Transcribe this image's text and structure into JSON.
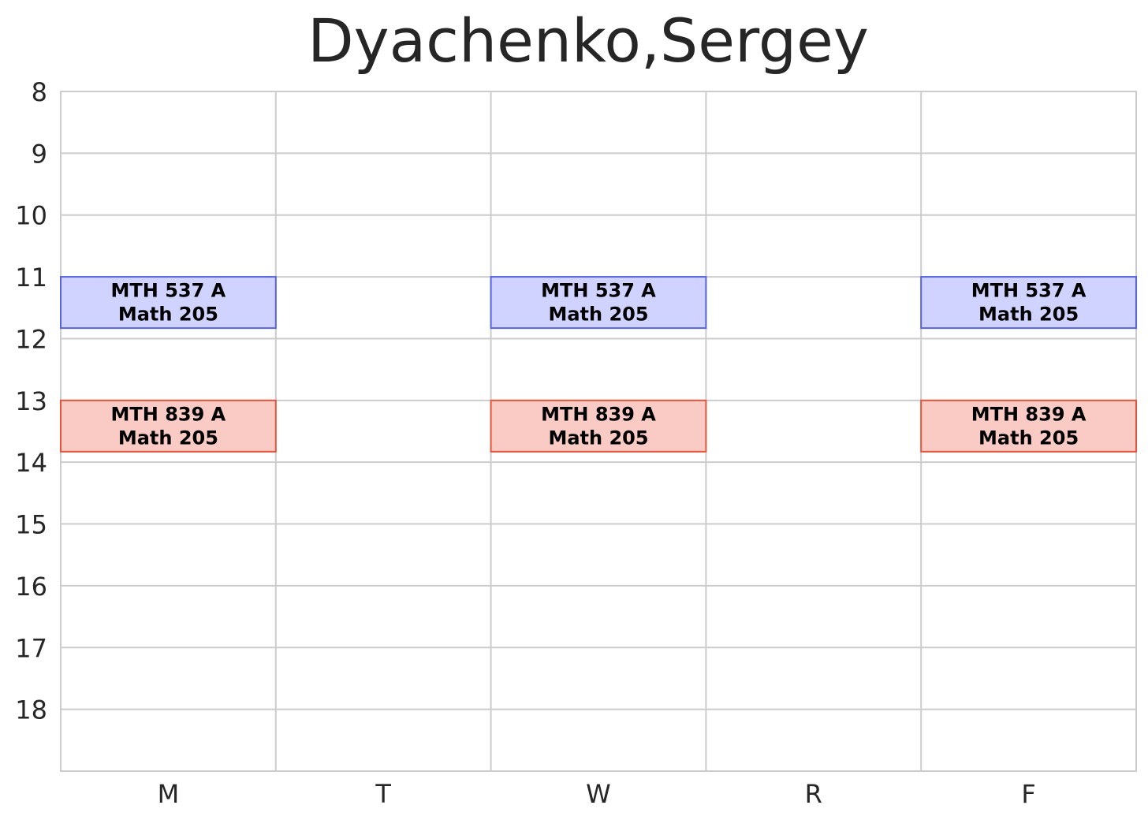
{
  "chart_data": {
    "type": "timetable",
    "title": "Dyachenko,Sergey",
    "days": [
      "M",
      "T",
      "W",
      "R",
      "F"
    ],
    "hours": [
      8,
      9,
      10,
      11,
      12,
      13,
      14,
      15,
      16,
      17,
      18
    ],
    "ylim": [
      8,
      19
    ],
    "grid": true,
    "events": [
      {
        "day": "M",
        "start": 11.0,
        "end": 11.83,
        "course": "MTH 537 A",
        "room": "Math 205",
        "fill": "#d0d3ff",
        "stroke": "#5563e0"
      },
      {
        "day": "W",
        "start": 11.0,
        "end": 11.83,
        "course": "MTH 537 A",
        "room": "Math 205",
        "fill": "#d0d3ff",
        "stroke": "#5563e0"
      },
      {
        "day": "F",
        "start": 11.0,
        "end": 11.83,
        "course": "MTH 537 A",
        "room": "Math 205",
        "fill": "#d0d3ff",
        "stroke": "#5563e0"
      },
      {
        "day": "M",
        "start": 13.0,
        "end": 13.83,
        "course": "MTH 839 A",
        "room": "Math 205",
        "fill": "#f9cbc4",
        "stroke": "#e4553b"
      },
      {
        "day": "W",
        "start": 13.0,
        "end": 13.83,
        "course": "MTH 839 A",
        "room": "Math 205",
        "fill": "#f9cbc4",
        "stroke": "#e4553b"
      },
      {
        "day": "F",
        "start": 13.0,
        "end": 13.83,
        "course": "MTH 839 A",
        "room": "Math 205",
        "fill": "#f9cbc4",
        "stroke": "#e4553b"
      }
    ],
    "colors": {
      "grid": "#cccccc",
      "text": "#262626"
    }
  }
}
